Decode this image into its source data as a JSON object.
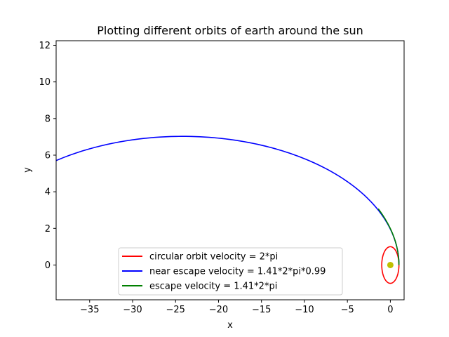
{
  "chart_data": {
    "type": "line",
    "title": "Plotting different orbits of earth around the sun",
    "xlabel": "x",
    "ylabel": "y",
    "xlim": [
      -38.9,
      1.6
    ],
    "ylim": [
      -1.9,
      12.25
    ],
    "xticks": [
      -35,
      -30,
      -25,
      -20,
      -15,
      -10,
      -5,
      0
    ],
    "xtick_labels": [
      "−35",
      "−30",
      "−25",
      "−20",
      "−15",
      "−10",
      "−5",
      "0"
    ],
    "yticks": [
      0,
      2,
      4,
      6,
      8,
      10,
      12
    ],
    "ytick_labels": [
      "0",
      "2",
      "4",
      "6",
      "8",
      "10",
      "12"
    ],
    "grid": false,
    "legend_position": "lower-center",
    "series": [
      {
        "name": "circular orbit velocity = 2*pi",
        "color": "#ff0000",
        "kind": "circle",
        "center": [
          0,
          0
        ],
        "radius": 1
      },
      {
        "name": "near escape velocity = 1.41*2*pi*0.99",
        "color": "#0000ff",
        "kind": "ellipse",
        "rp": 1,
        "e": 0.9603,
        "theta_range": [
          0,
          3.2
        ]
      },
      {
        "name": "escape velocity = 1.41*2*pi",
        "color": "#008000",
        "kind": "ellipse",
        "rp": 1,
        "e": 0.9881,
        "theta_range": [
          0,
          2.0
        ]
      }
    ],
    "sun": {
      "x": 0,
      "y": 0,
      "color": "#bfbf00"
    }
  }
}
